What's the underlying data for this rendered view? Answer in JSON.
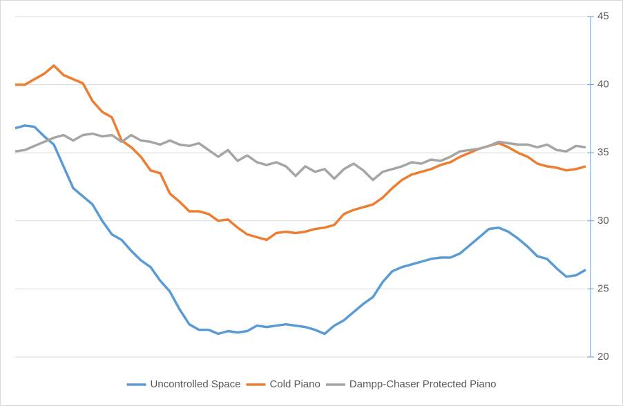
{
  "chart_data": {
    "type": "line",
    "series": [
      {
        "name": "Uncontrolled Space",
        "color": "#5b9bd5",
        "values": [
          36.8,
          37,
          36.9,
          36.2,
          35.6,
          34,
          32.4,
          31.8,
          31.2,
          30,
          29,
          28.6,
          27.8,
          27.1,
          26.6,
          25.6,
          24.8,
          23.5,
          22.4,
          22,
          22,
          21.7,
          21.9,
          21.8,
          21.9,
          22.3,
          22.2,
          22.3,
          22.4,
          22.3,
          22.2,
          22,
          21.7,
          22.3,
          22.7,
          23.3,
          23.9,
          24.4,
          25.5,
          26.3,
          26.6,
          26.8,
          27,
          27.2,
          27.3,
          27.3,
          27.6,
          28.2,
          28.8,
          29.4,
          29.5,
          29.2,
          28.7,
          28.1,
          27.4,
          27.2,
          26.5,
          25.9,
          26,
          26.4
        ]
      },
      {
        "name": "Cold Piano",
        "color": "#ed7d31",
        "values": [
          40,
          40,
          40.4,
          40.8,
          41.4,
          40.7,
          40.4,
          40.1,
          38.8,
          38,
          37.6,
          35.9,
          35.4,
          34.7,
          33.7,
          33.5,
          32,
          31.4,
          30.7,
          30.7,
          30.5,
          30,
          30.1,
          29.5,
          29,
          28.8,
          28.6,
          29.1,
          29.2,
          29.1,
          29.2,
          29.4,
          29.5,
          29.7,
          30.5,
          30.8,
          31,
          31.2,
          31.7,
          32.4,
          33,
          33.4,
          33.6,
          33.8,
          34.1,
          34.3,
          34.7,
          35,
          35.3,
          35.5,
          35.7,
          35.4,
          35,
          34.7,
          34.2,
          34,
          33.9,
          33.7,
          33.8,
          34
        ]
      },
      {
        "name": "Dampp-Chaser Protected Piano",
        "color": "#a5a5a5",
        "values": [
          35.1,
          35.2,
          35.5,
          35.8,
          36.1,
          36.3,
          35.9,
          36.3,
          36.4,
          36.2,
          36.3,
          35.8,
          36.3,
          35.9,
          35.8,
          35.6,
          35.9,
          35.6,
          35.5,
          35.7,
          35.2,
          34.7,
          35.2,
          34.4,
          34.8,
          34.3,
          34.1,
          34.3,
          34,
          33.3,
          34,
          33.6,
          33.8,
          33.1,
          33.8,
          34.2,
          33.7,
          33,
          33.6,
          33.8,
          34,
          34.3,
          34.2,
          34.5,
          34.4,
          34.7,
          35.1,
          35.2,
          35.3,
          35.5,
          35.8,
          35.7,
          35.6,
          35.6,
          35.4,
          35.6,
          35.2,
          35.1,
          35.5,
          35.4
        ]
      }
    ],
    "ylim": [
      20,
      45
    ],
    "yticks": [
      20,
      25,
      30,
      35,
      40,
      45
    ],
    "grid": true,
    "legend": "bottom"
  }
}
